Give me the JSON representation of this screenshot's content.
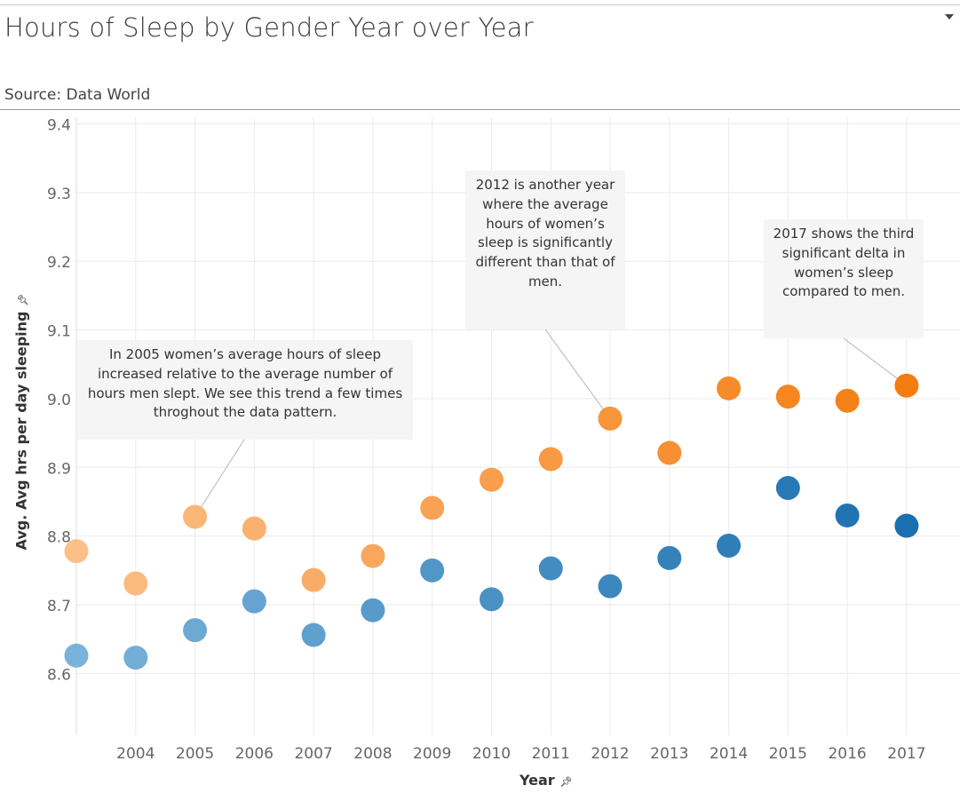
{
  "header": {
    "title": "Hours of Sleep by Gender Year over Year",
    "subtitle": "Source: Data World"
  },
  "colors": {
    "women_light": "#fbbf88",
    "women_dark": "#f57d0f",
    "men_light": "#7ab3d9",
    "men_dark": "#1a6faf",
    "gridline": "#ebebeb",
    "annotation_bg": "#f5f5f5"
  },
  "icons": {
    "menu": "chevron-down-icon",
    "pin": "pin-icon"
  },
  "chart_data": {
    "type": "scatter",
    "xlabel": "Year",
    "ylabel": "Avg. Avg hrs per day sleeping",
    "x": [
      2003,
      2004,
      2005,
      2006,
      2007,
      2008,
      2009,
      2010,
      2011,
      2012,
      2013,
      2014,
      2015,
      2016,
      2017
    ],
    "x_ticks": [
      "2004",
      "2005",
      "2006",
      "2007",
      "2008",
      "2009",
      "2010",
      "2011",
      "2012",
      "2013",
      "2014",
      "2015",
      "2016",
      "2017"
    ],
    "y_ticks": [
      "8.6",
      "8.7",
      "8.8",
      "8.9",
      "9.0",
      "9.1",
      "9.2",
      "9.3",
      "9.4"
    ],
    "ylim": [
      8.51,
      9.42
    ],
    "xlim": [
      2003,
      2017.9
    ],
    "grid": true,
    "series": [
      {
        "values": [
          8.778,
          8.731,
          8.828,
          8.811,
          8.736,
          8.771,
          8.841,
          8.882,
          8.912,
          8.971,
          8.921,
          9.015,
          9.003,
          8.997,
          9.019
        ],
        "color_scale": [
          "#fbbf88",
          "#f57d0f"
        ]
      },
      {
        "values": [
          8.626,
          8.623,
          8.663,
          8.705,
          8.656,
          8.692,
          8.75,
          8.708,
          8.753,
          8.727,
          8.768,
          8.786,
          8.87,
          8.83,
          8.815
        ],
        "color_scale": [
          "#7ab3d9",
          "#1a6faf"
        ]
      }
    ],
    "annotations": [
      {
        "text": "In 2005 women’s average hours of sleep increased relative to the average number of hours men slept.  We see this trend a few times throghout the data pattern.",
        "x": 2005,
        "y": 8.828
      },
      {
        "text": "2012 is another year where the average hours of women’s sleep is significantly different than that of men.",
        "x": 2012,
        "y": 8.971
      },
      {
        "text": "2017 shows the third significant delta  in women’s sleep compared to men.",
        "x": 2017,
        "y": 9.019
      }
    ]
  }
}
